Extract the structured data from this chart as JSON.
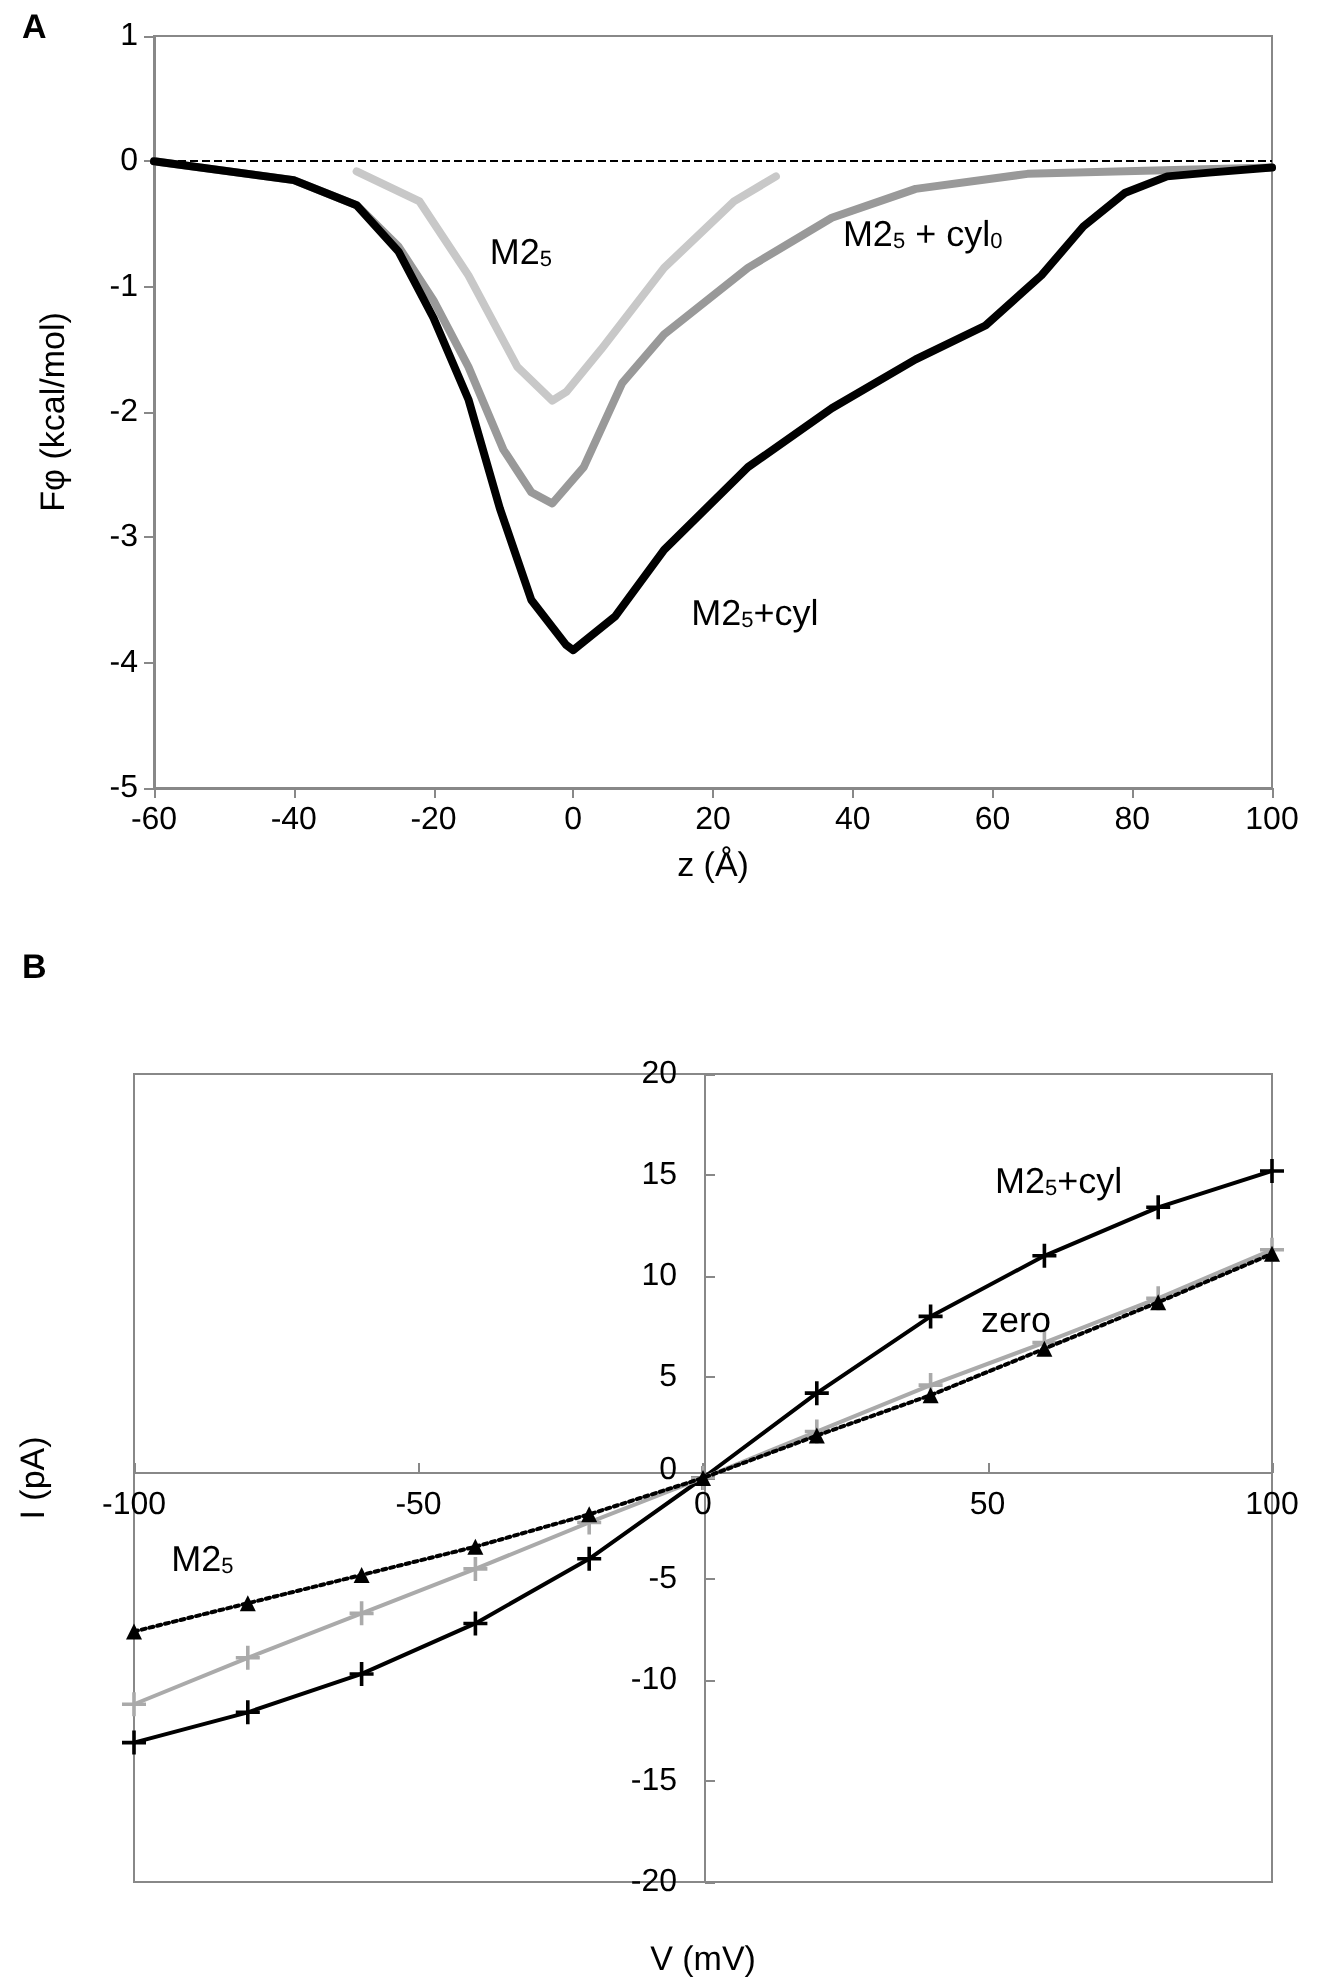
{
  "chart_data": [
    {
      "type": "line",
      "title": "A",
      "xlabel": "z (Å)",
      "ylabel": "Fφ (kcal/mol)",
      "xlim": [
        -60,
        100
      ],
      "xticks": [
        -60,
        -40,
        -20,
        0,
        20,
        40,
        60,
        80,
        100
      ],
      "ylim": [
        -5,
        1
      ],
      "yticks": [
        -5,
        -4,
        -3,
        -2,
        -1,
        0,
        1
      ],
      "legend": false,
      "series": [
        {
          "name": "M2$_{5}$",
          "color": "#c8c8c8",
          "x": [
            -31,
            -22,
            -15,
            -8,
            -3,
            -1,
            4,
            13,
            23,
            29
          ],
          "values": [
            -0.08,
            -0.32,
            -0.91,
            -1.64,
            -1.91,
            -1.84,
            -1.5,
            -0.85,
            -0.32,
            -0.12
          ]
        },
        {
          "name": "M2$_{5}$ + cyl$_{0}$",
          "color": "#999999",
          "x": [
            -60,
            -40,
            -31,
            -25,
            -20,
            -15,
            -10,
            -6,
            -3,
            1.5,
            7,
            13,
            25,
            37,
            49,
            65,
            100
          ],
          "values": [
            0,
            -0.15,
            -0.35,
            -0.68,
            -1.11,
            -1.64,
            -2.3,
            -2.64,
            -2.73,
            -2.44,
            -1.77,
            -1.38,
            -0.85,
            -0.45,
            -0.22,
            -0.1,
            -0.05
          ]
        },
        {
          "name": "M2$_{5}$+cyl",
          "color": "#000000",
          "x": [
            -60,
            -40,
            -31,
            -25,
            -20,
            -15,
            -10.5,
            -6,
            -1,
            0,
            6,
            13,
            25,
            37,
            49,
            59,
            67,
            73,
            79,
            85,
            91,
            100
          ],
          "values": [
            0,
            -0.15,
            -0.35,
            -0.72,
            -1.25,
            -1.9,
            -2.77,
            -3.5,
            -3.86,
            -3.9,
            -3.63,
            -3.1,
            -2.44,
            -1.97,
            -1.58,
            -1.31,
            -0.91,
            -0.52,
            -0.25,
            -0.12,
            -0.09,
            -0.05
          ]
        }
      ],
      "ref_lines": [
        {
          "axis": "y",
          "value": 0,
          "color": "#000000",
          "line_style": "dashed"
        }
      ]
    },
    {
      "type": "line",
      "title": "B",
      "xlabel": "V (mV)",
      "ylabel": "I (pA)",
      "xlim": [
        -100,
        100
      ],
      "xticks": [
        -100,
        -50,
        0,
        50,
        100
      ],
      "ylim": [
        -20,
        20
      ],
      "yticks": [
        -20,
        -15,
        -10,
        -5,
        0,
        5,
        10,
        15,
        20
      ],
      "legend": false,
      "x": [
        -100,
        -80,
        -60,
        -40,
        -20,
        0,
        20,
        40,
        60,
        80,
        100
      ],
      "series": [
        {
          "name": "M2$_{5}$+cyl",
          "color": "#000000",
          "marker": "cross",
          "line_style": "solid",
          "values": [
            -13.1,
            -11.6,
            -9.7,
            -7.2,
            -4.0,
            0,
            4.2,
            8.0,
            11.0,
            13.4,
            15.2
          ]
        },
        {
          "name": "zero",
          "color": "#aaaaaa",
          "marker": "cross",
          "line_style": "solid",
          "values": [
            -11.2,
            -8.9,
            -6.7,
            -4.5,
            -2.2,
            0,
            2.3,
            4.6,
            6.7,
            8.9,
            11.3
          ]
        },
        {
          "name": "M2$_{5}$",
          "color": "#000000",
          "marker": "triangle",
          "line_style": "dotted",
          "values": [
            -7.6,
            -6.2,
            -4.8,
            -3.4,
            -1.8,
            0,
            2.1,
            4.1,
            6.4,
            8.7,
            11.1
          ]
        }
      ]
    }
  ]
}
